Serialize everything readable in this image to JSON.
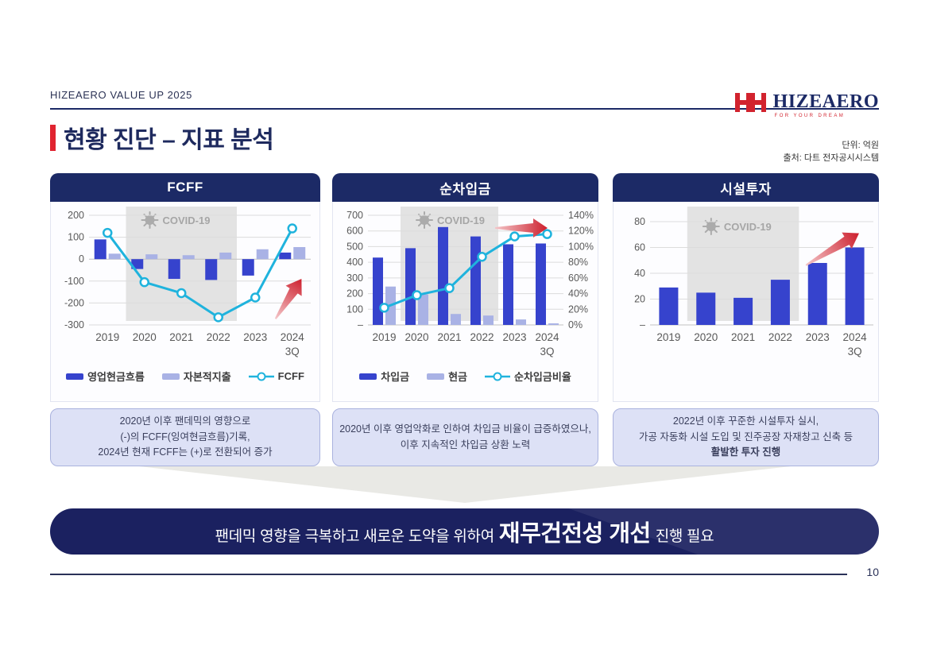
{
  "header": {
    "eyebrow": "HIZEAERO VALUE UP 2025",
    "logo": {
      "mark": "HH",
      "name": "HIZEAERO",
      "tagline": "FOR YOUR DREAM"
    },
    "title": "현황 진단 – 지표 분석",
    "unit_note": "단위: 억원",
    "source_note": "출처: 다트 전자공시시스템"
  },
  "colors": {
    "navy": "#1c2a66",
    "bar_dark": "#3643cd",
    "bar_light": "#a9b2e5",
    "line_cyan": "#1fb3dd",
    "covid_gray": "#e3e3e3",
    "covid_text": "#a6a6a6",
    "arrow_red": "#cd1f2d",
    "accent_red": "#e02430"
  },
  "chart_data": [
    {
      "type": "bar+line",
      "title": "FCFF",
      "categories": [
        "2019",
        "2020",
        "2021",
        "2022",
        "2023",
        "2024"
      ],
      "last_category_suffix": "3Q",
      "bar_series": [
        {
          "name": "영업현금흐름",
          "values": [
            90,
            -45,
            -90,
            -95,
            -75,
            30
          ],
          "color": "#3643cd"
        },
        {
          "name": "자본적지출",
          "values": [
            25,
            22,
            18,
            30,
            45,
            55
          ],
          "color": "#a9b2e5"
        }
      ],
      "line_series": {
        "name": "FCFF",
        "values": [
          120,
          -105,
          -155,
          -265,
          -175,
          140
        ],
        "axis": "left",
        "color": "#1fb3dd"
      },
      "left_axis": {
        "min": -300,
        "max": 200,
        "step": 100,
        "zero_label": "0"
      },
      "right_axis": null,
      "covid": {
        "label": "COVID-19",
        "from": "2020",
        "to": "2022"
      },
      "grid": true,
      "legend_position": "bottom"
    },
    {
      "type": "bar+line",
      "title": "순차입금",
      "categories": [
        "2019",
        "2020",
        "2021",
        "2022",
        "2023",
        "2024"
      ],
      "last_category_suffix": "3Q",
      "bar_series": [
        {
          "name": "차입금",
          "values": [
            430,
            490,
            625,
            565,
            515,
            520
          ],
          "color": "#3643cd"
        },
        {
          "name": "현금",
          "values": [
            245,
            195,
            70,
            60,
            35,
            10
          ],
          "color": "#a9b2e5"
        }
      ],
      "line_series": {
        "name": "순차입금비율",
        "values": [
          22,
          38,
          47,
          87,
          113,
          116
        ],
        "axis": "right",
        "color": "#1fb3dd"
      },
      "left_axis": {
        "min": 0,
        "max": 700,
        "step": 100,
        "zero_label": "–"
      },
      "right_axis": {
        "min": 0,
        "max": 140,
        "step": 20,
        "suffix": "%"
      },
      "covid": {
        "label": "COVID-19",
        "from": "2020",
        "to": "2022"
      },
      "grid": true,
      "legend_position": "bottom"
    },
    {
      "type": "bar",
      "title": "시설투자",
      "categories": [
        "2019",
        "2020",
        "2021",
        "2022",
        "2023",
        "2024"
      ],
      "last_category_suffix": "3Q",
      "bar_series": [
        {
          "name": "시설투자",
          "values": [
            29,
            25,
            21,
            35,
            48,
            60
          ],
          "color": "#3643cd"
        }
      ],
      "line_series": null,
      "left_axis": {
        "min": 0,
        "max": 80,
        "step": 20,
        "zero_label": "–"
      },
      "right_axis": null,
      "covid": {
        "label": "COVID-19",
        "from": "2020",
        "to": "2022"
      },
      "grid": true,
      "legend_position": "none"
    }
  ],
  "insight_boxes": [
    {
      "lines": [
        {
          "text": "2020년 이후 팬데믹의 영향으로",
          "bold": false
        },
        {
          "text": "(-)의 FCFF(잉여현금흐름)기록,",
          "bold": false
        },
        {
          "text": "2024년 현재 FCFF는 (+)로 전환되어 증가",
          "bold": false
        }
      ]
    },
    {
      "lines": [
        {
          "text": "2020년 이후 영업악화로 인하여 차입금 비율이 급증하였으나,",
          "bold": false
        },
        {
          "text": "이후 지속적인 차입금 상환 노력",
          "bold": false
        }
      ]
    },
    {
      "lines": [
        {
          "text": "2022년 이후 꾸준한 시설투자 실시,",
          "bold": false
        },
        {
          "text": "가공 자동화 시설 도입 및 진주공장 자재창고 신축 등",
          "bold": false
        },
        {
          "text": "활발한 투자 진행",
          "bold": true
        }
      ]
    }
  ],
  "banner": {
    "prefix": "팬데믹 영향을 극복하고 새로운 도약을 위하여",
    "highlight": "재무건전성 개선",
    "suffix": "진행 필요"
  },
  "page_number": "10"
}
